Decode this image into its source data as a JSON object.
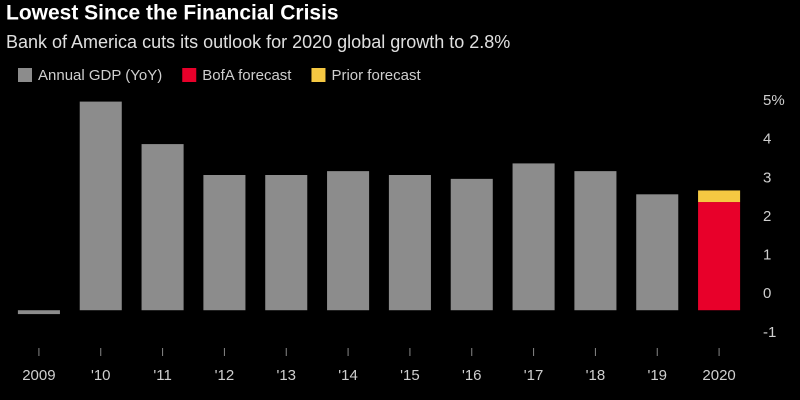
{
  "chart_data": {
    "type": "bar",
    "title": "Lowest Since the Financial Crisis",
    "subtitle": "Bank of America cuts its outlook for 2020 global growth to 2.8%",
    "categories": [
      "2009",
      "'10",
      "'11",
      "'12",
      "'13",
      "'14",
      "'15",
      "'16",
      "'17",
      "'18",
      "'19",
      "2020"
    ],
    "series": [
      {
        "name": "Annual GDP (YoY)",
        "color": "#8c8c8c",
        "values": [
          -0.1,
          5.4,
          4.3,
          3.5,
          3.5,
          3.6,
          3.5,
          3.4,
          3.8,
          3.6,
          3.0,
          null
        ]
      },
      {
        "name": "BofA forecast",
        "color": "#e8002a",
        "values": [
          null,
          null,
          null,
          null,
          null,
          null,
          null,
          null,
          null,
          null,
          null,
          2.8
        ]
      },
      {
        "name": "Prior forecast",
        "color": "#f5c842",
        "values": [
          null,
          null,
          null,
          null,
          null,
          null,
          null,
          null,
          null,
          null,
          null,
          0.3
        ]
      }
    ],
    "stacked": true,
    "ylim": [
      -0.9,
      5.7
    ],
    "yticks": [
      {
        "value": 5,
        "label": "5%"
      },
      4,
      3,
      2,
      1,
      0,
      -1
    ],
    "grid": false
  }
}
